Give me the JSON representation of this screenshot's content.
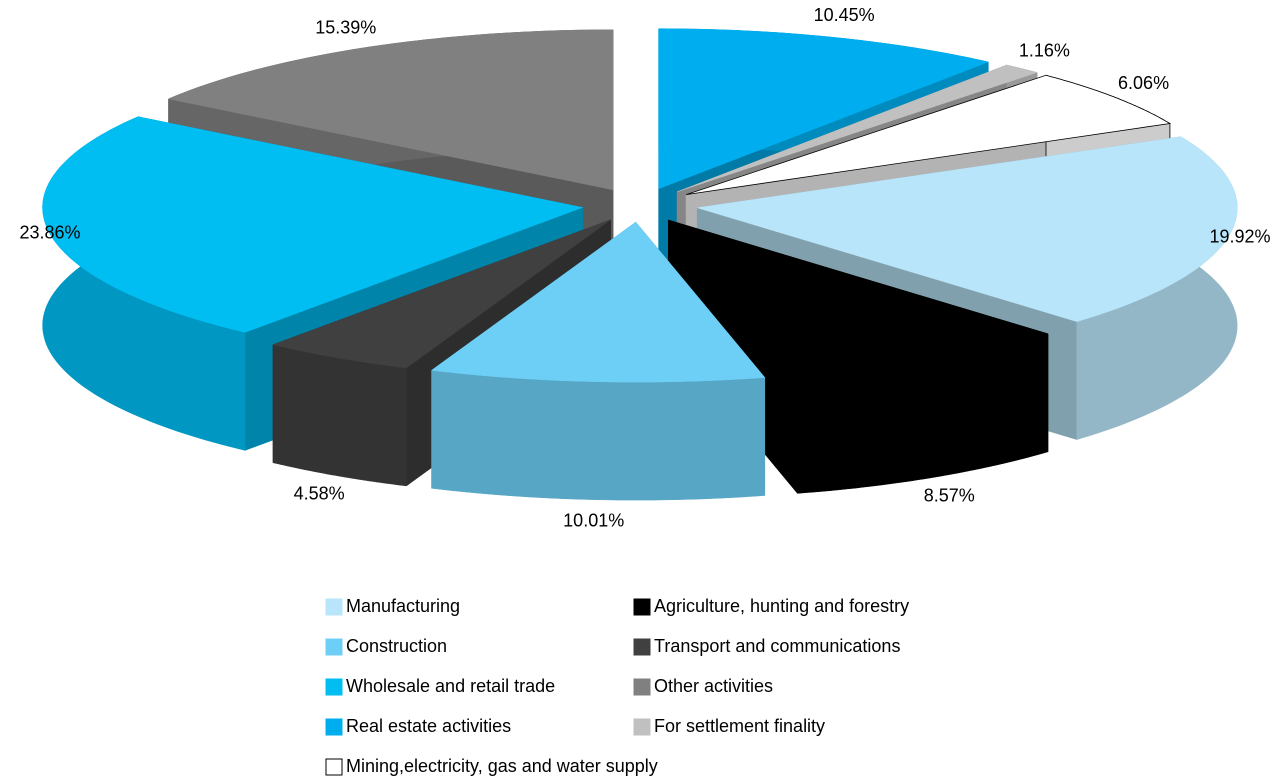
{
  "chart_data": {
    "type": "pie3d",
    "categories": [
      "Manufacturing",
      "Agriculture, hunting and forestry",
      "Construction",
      "Transport and communications",
      "Wholesale and retail trade",
      "Other activities",
      "Real estate activities",
      "For settlement finality",
      "Mining,electricity, gas and water supply"
    ],
    "values": [
      19.92,
      8.57,
      10.01,
      4.58,
      23.86,
      15.39,
      10.45,
      1.16,
      6.06
    ],
    "value_labels": [
      "19.92%",
      "8.57%",
      "10.01%",
      "4.58%",
      "23.86%",
      "15.39%",
      "10.45%",
      "1.16%",
      "6.06%"
    ],
    "colors": [
      "#b8e5f9",
      "#000000",
      "#6dcff6",
      "#404040",
      "#00bdf2",
      "#808080",
      "#00aeef",
      "#c0c0c0",
      "#ffffff"
    ]
  }
}
